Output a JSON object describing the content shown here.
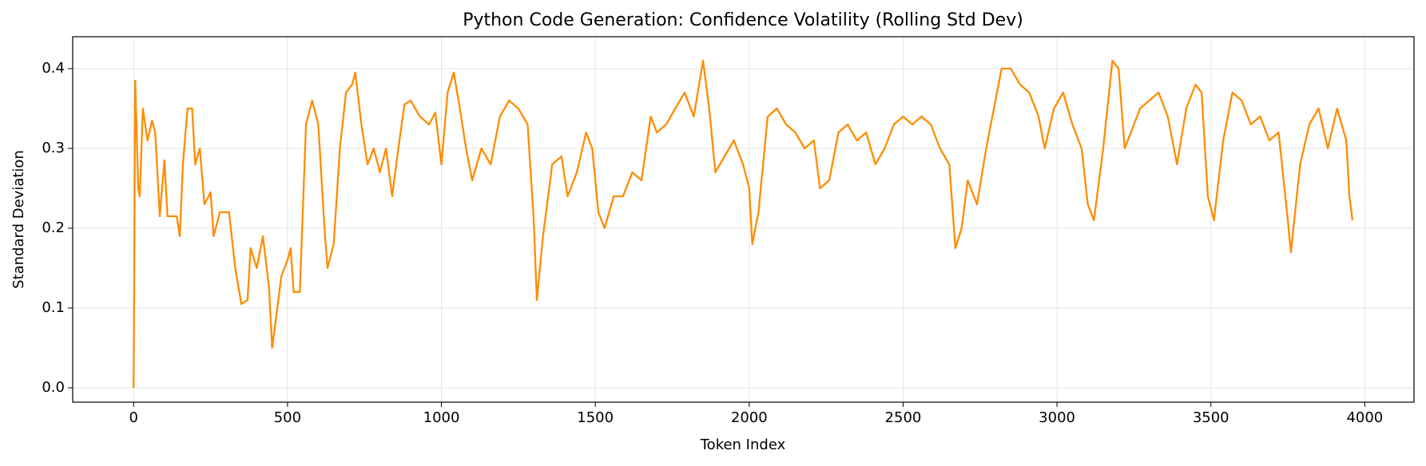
{
  "chart_data": {
    "type": "line",
    "title": "Python Code Generation: Confidence Volatility (Rolling Std Dev)",
    "x_label": "Token Index",
    "y_label": "Standard Deviation",
    "color": "#ff8c00",
    "grid": true,
    "xlim": [
      -198,
      4160
    ],
    "ylim": [
      -0.018,
      0.44
    ],
    "xticks": [
      0,
      500,
      1000,
      1500,
      2000,
      2500,
      3000,
      3500,
      4000
    ],
    "yticks": [
      {
        "value": 0,
        "label": "0.0"
      },
      0.1,
      0.2,
      0.3,
      0.4
    ],
    "x": [
      0,
      5,
      15,
      20,
      30,
      45,
      60,
      70,
      85,
      100,
      110,
      140,
      150,
      160,
      175,
      190,
      200,
      215,
      230,
      250,
      260,
      280,
      310,
      330,
      350,
      370,
      380,
      400,
      420,
      440,
      450,
      480,
      500,
      510,
      520,
      540,
      560,
      580,
      600,
      620,
      630,
      650,
      670,
      690,
      710,
      720,
      740,
      760,
      780,
      800,
      820,
      840,
      860,
      880,
      900,
      930,
      960,
      980,
      1000,
      1020,
      1040,
      1060,
      1080,
      1100,
      1130,
      1160,
      1190,
      1220,
      1250,
      1280,
      1300,
      1310,
      1330,
      1360,
      1390,
      1410,
      1440,
      1470,
      1490,
      1510,
      1530,
      1560,
      1590,
      1620,
      1650,
      1680,
      1700,
      1730,
      1760,
      1790,
      1820,
      1850,
      1870,
      1890,
      1920,
      1950,
      1980,
      2000,
      2010,
      2030,
      2060,
      2090,
      2120,
      2150,
      2180,
      2210,
      2230,
      2260,
      2290,
      2320,
      2350,
      2380,
      2410,
      2440,
      2470,
      2500,
      2530,
      2560,
      2590,
      2620,
      2650,
      2670,
      2690,
      2710,
      2740,
      2770,
      2800,
      2820,
      2850,
      2880,
      2910,
      2940,
      2960,
      2990,
      3020,
      3050,
      3080,
      3100,
      3120,
      3150,
      3180,
      3200,
      3220,
      3240,
      3270,
      3300,
      3330,
      3360,
      3390,
      3420,
      3450,
      3470,
      3490,
      3510,
      3540,
      3570,
      3600,
      3630,
      3660,
      3690,
      3720,
      3750,
      3760,
      3790,
      3820,
      3850,
      3880,
      3910,
      3940,
      3950,
      3960
    ],
    "values": [
      0,
      0.385,
      0.25,
      0.24,
      0.35,
      0.31,
      0.335,
      0.32,
      0.215,
      0.285,
      0.215,
      0.215,
      0.19,
      0.28,
      0.35,
      0.35,
      0.28,
      0.3,
      0.23,
      0.245,
      0.19,
      0.22,
      0.22,
      0.15,
      0.105,
      0.11,
      0.175,
      0.15,
      0.19,
      0.125,
      0.05,
      0.14,
      0.16,
      0.175,
      0.12,
      0.12,
      0.33,
      0.36,
      0.33,
      0.2,
      0.15,
      0.18,
      0.3,
      0.37,
      0.38,
      0.395,
      0.33,
      0.28,
      0.3,
      0.27,
      0.3,
      0.24,
      0.3,
      0.355,
      0.36,
      0.34,
      0.33,
      0.345,
      0.28,
      0.37,
      0.395,
      0.35,
      0.3,
      0.26,
      0.3,
      0.28,
      0.34,
      0.36,
      0.35,
      0.33,
      0.21,
      0.11,
      0.19,
      0.28,
      0.29,
      0.24,
      0.27,
      0.32,
      0.3,
      0.22,
      0.2,
      0.24,
      0.24,
      0.27,
      0.26,
      0.34,
      0.32,
      0.33,
      0.35,
      0.37,
      0.34,
      0.41,
      0.35,
      0.27,
      0.29,
      0.31,
      0.28,
      0.25,
      0.18,
      0.22,
      0.34,
      0.35,
      0.33,
      0.32,
      0.3,
      0.31,
      0.25,
      0.26,
      0.32,
      0.33,
      0.31,
      0.32,
      0.28,
      0.3,
      0.33,
      0.34,
      0.33,
      0.34,
      0.33,
      0.3,
      0.28,
      0.175,
      0.2,
      0.26,
      0.23,
      0.3,
      0.36,
      0.4,
      0.4,
      0.38,
      0.37,
      0.34,
      0.3,
      0.35,
      0.37,
      0.33,
      0.3,
      0.23,
      0.21,
      0.3,
      0.41,
      0.4,
      0.3,
      0.32,
      0.35,
      0.36,
      0.37,
      0.34,
      0.28,
      0.35,
      0.38,
      0.37,
      0.24,
      0.21,
      0.31,
      0.37,
      0.36,
      0.33,
      0.34,
      0.31,
      0.32,
      0.21,
      0.17,
      0.28,
      0.33,
      0.35,
      0.3,
      0.35,
      0.31,
      0.24,
      0.21
    ]
  }
}
